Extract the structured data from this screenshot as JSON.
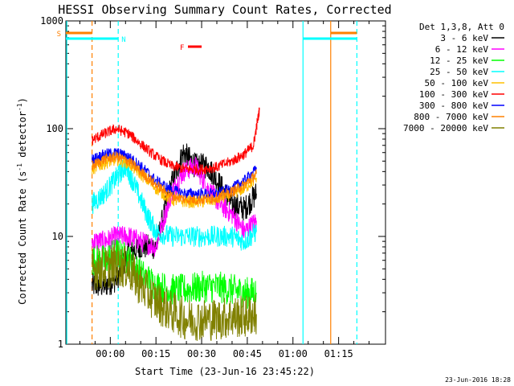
{
  "chart_data": {
    "type": "line",
    "title": "HESSI Observing Summary Count Rates, Corrected",
    "ylabel": "Corrected Count Rate (s",
    "ylabel_sup1": "-1",
    "ylabel_mid": " detector",
    "ylabel_sup2": "-1",
    "ylabel_end": ")",
    "xlabel": "Start Time (23-Jun-16 23:45:22)",
    "yscale": "log",
    "ylim": [
      1,
      1000
    ],
    "xlim_minutes": [
      -14.6,
      90.4
    ],
    "y_ticks": [
      {
        "v": 1,
        "label": "1"
      },
      {
        "v": 10,
        "label": "10"
      },
      {
        "v": 100,
        "label": "100"
      },
      {
        "v": 1000,
        "label": "1000"
      }
    ],
    "x_ticks": [
      {
        "m": 0,
        "label": "00:00"
      },
      {
        "m": 15,
        "label": "00:15"
      },
      {
        "m": 30,
        "label": "00:30"
      },
      {
        "m": 45,
        "label": "00:45"
      },
      {
        "m": 60,
        "label": "01:00"
      },
      {
        "m": 75,
        "label": "01:15"
      }
    ],
    "legend": {
      "placement": "right",
      "header": "Det 1,3,8, Att 0",
      "entries": [
        {
          "label": "3 - 6 keV",
          "color": "#000000"
        },
        {
          "label": "6 - 12 keV",
          "color": "#ff00ff"
        },
        {
          "label": "12 - 25 keV",
          "color": "#00ff00"
        },
        {
          "label": "25 - 50 keV",
          "color": "#00ffff"
        },
        {
          "label": "50 - 100 keV",
          "color": "#ffc000"
        },
        {
          "label": "100 - 300 keV",
          "color": "#ff0000"
        },
        {
          "label": "300 - 800 keV",
          "color": "#0000ff"
        },
        {
          "label": "800 - 7000 keV",
          "color": "#ff8000"
        },
        {
          "label": "7000 - 20000 keV",
          "color": "#808000"
        }
      ]
    },
    "series": [
      {
        "name": "3 - 6 keV",
        "color": "#000000",
        "x": [
          -6,
          -2,
          2,
          6,
          10,
          15,
          20,
          24,
          28,
          32,
          36,
          40,
          44,
          48
        ],
        "y": [
          3.5,
          3.5,
          4,
          7,
          8,
          8,
          30,
          60,
          45,
          45,
          30,
          20,
          18,
          25
        ],
        "noise": 0.12
      },
      {
        "name": "6 - 12 keV",
        "color": "#ff00ff",
        "x": [
          -6,
          -2,
          2,
          6,
          10,
          15,
          20,
          24,
          28,
          32,
          36,
          40,
          44,
          48
        ],
        "y": [
          9,
          9,
          10,
          10,
          9,
          8,
          25,
          40,
          45,
          28,
          20,
          16,
          11,
          14
        ],
        "noise": 0.1
      },
      {
        "name": "12 - 25 keV",
        "color": "#00ff00",
        "x": [
          -6,
          -2,
          2,
          6,
          10,
          15,
          20,
          25,
          30,
          35,
          40,
          44,
          48
        ],
        "y": [
          6,
          6,
          7,
          6,
          4.5,
          3.5,
          3.2,
          3.2,
          3.4,
          3.4,
          3.2,
          3,
          3
        ],
        "noise": 0.15
      },
      {
        "name": "25 - 50 keV",
        "color": "#00ffff",
        "x": [
          -6,
          -2,
          2,
          5,
          8,
          12,
          15,
          20,
          25,
          30,
          35,
          40,
          44,
          48
        ],
        "y": [
          20,
          25,
          35,
          45,
          30,
          16,
          11,
          10,
          10,
          10,
          10,
          10,
          9,
          11
        ],
        "noise": 0.1
      },
      {
        "name": "50 - 100 keV",
        "color": "#ffc000",
        "x": [
          -6,
          -2,
          2,
          6,
          10,
          15,
          20,
          25,
          30,
          35,
          40,
          44,
          48
        ],
        "y": [
          42,
          48,
          52,
          48,
          38,
          28,
          22,
          21,
          21,
          22,
          25,
          28,
          35
        ],
        "noise": 0.06
      },
      {
        "name": "100 - 300 keV",
        "color": "#ff0000",
        "x": [
          -6,
          -2,
          2,
          6,
          10,
          15,
          20,
          25,
          30,
          35,
          40,
          44,
          47,
          49
        ],
        "y": [
          78,
          90,
          100,
          90,
          72,
          55,
          45,
          42,
          42,
          44,
          50,
          58,
          70,
          150
        ],
        "noise": 0.05
      },
      {
        "name": "300 - 800 keV",
        "color": "#0000ff",
        "x": [
          -6,
          -2,
          2,
          6,
          10,
          15,
          20,
          25,
          30,
          35,
          40,
          44,
          48
        ],
        "y": [
          52,
          58,
          60,
          55,
          45,
          33,
          27,
          25,
          25,
          25,
          28,
          33,
          42
        ],
        "noise": 0.05
      },
      {
        "name": "800 - 7000 keV",
        "color": "#ff8000",
        "x": [
          -6,
          -2,
          2,
          6,
          10,
          15,
          20,
          25,
          30,
          35,
          40,
          44,
          48
        ],
        "y": [
          45,
          52,
          55,
          50,
          40,
          30,
          24,
          22,
          22,
          23,
          26,
          30,
          38
        ],
        "noise": 0.05
      },
      {
        "name": "7000 - 20000 keV",
        "color": "#808000",
        "x": [
          -6,
          -2,
          2,
          6,
          10,
          15,
          20,
          25,
          30,
          35,
          40,
          44,
          48
        ],
        "y": [
          5,
          5,
          5.5,
          5,
          3.5,
          2.5,
          2,
          1.7,
          1.7,
          1.7,
          1.8,
          1.8,
          1.9
        ],
        "noise": 0.2
      }
    ],
    "vertical_lines": [
      {
        "m": -14.3,
        "color": "#00ffff",
        "dashed": false
      },
      {
        "m": -6,
        "color": "#ff8000",
        "dashed": true
      },
      {
        "m": 2.6,
        "color": "#00ffff",
        "dashed": true
      },
      {
        "m": 63.3,
        "color": "#00ffff",
        "dashed": false
      },
      {
        "m": 72.4,
        "color": "#ff8000",
        "dashed": false
      },
      {
        "m": 81.0,
        "color": "#00ffff",
        "dashed": true
      }
    ],
    "flag_bars": [
      {
        "label": "S",
        "label_color": "#ff8000",
        "color": "#ff8000",
        "m0": -14.6,
        "m1": -6,
        "y": 1000
      },
      {
        "label": "N",
        "label_color": "#00ffff",
        "color": "#00ffff",
        "m0": -14.6,
        "m1": 2.6,
        "y": 1000
      },
      {
        "label": "",
        "label_color": "",
        "color": "#00ffff",
        "m0": 63.3,
        "m1": 81.0,
        "y": 1000
      },
      {
        "label": "",
        "label_color": "",
        "color": "#ff8000",
        "m0": 72.4,
        "m1": 81.0,
        "y": 1000
      },
      {
        "label": "F",
        "label_color": "#ff0000",
        "color": "#ff0000",
        "m0": 25.5,
        "m1": 30.0,
        "y": 1000
      }
    ]
  },
  "footer": {
    "timestamp": "23-Jun-2016 18:28"
  }
}
